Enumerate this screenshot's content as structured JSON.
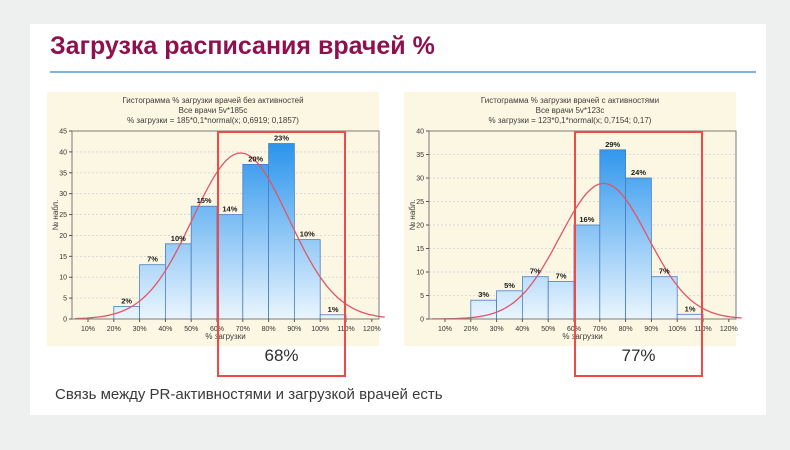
{
  "page": {
    "title": "Загрузка расписания врачей %",
    "footnote": "Связь между PR-активностями и загрузкой врачей есть"
  },
  "colors": {
    "title_text": "#8e104f",
    "title_underline": "#7fb2d9",
    "card_background": "#fcf7e2",
    "bar_gradient_top": "#1d8deb",
    "bar_gradient_bottom": "#eaf5fe",
    "bar_border": "#4a7ec0",
    "normal_curve": "#e25568",
    "highlight_box": "#ef4949",
    "footnote_text": "#3a3a3a"
  },
  "chart_data": [
    {
      "type": "bar",
      "title": "Гистограмма % загрузки врачей без активностей",
      "subtitle": "Все врачи 5v*185c",
      "formula": "% загрузки = 185*0,1*normal(x; 0,6919; 0,1857)",
      "xlabel": "% загрузки",
      "ylabel": "№ набл.",
      "ylim": [
        0,
        45
      ],
      "ytick_step": 5,
      "grid": true,
      "xticks": [
        "10%",
        "20%",
        "30%",
        "40%",
        "50%",
        "60%",
        "70%",
        "80%",
        "90%",
        "100%",
        "110%",
        "120%"
      ],
      "bins_start_pct": 20,
      "bin_width_pct": 10,
      "values": [
        3,
        13,
        18,
        27,
        25,
        37,
        42,
        19,
        1
      ],
      "bar_labels": [
        "2%",
        "7%",
        "10%",
        "15%",
        "14%",
        "20%",
        "23%",
        "10%",
        "1%"
      ],
      "normal_curve": {
        "n": 185,
        "factor": 0.1,
        "mean": 0.6919,
        "sd": 0.1857
      },
      "highlight_range_pct": [
        60,
        110
      ],
      "highlight_label": "68%"
    },
    {
      "type": "bar",
      "title": "Гистограмма % загрузки врачей с активностями",
      "subtitle": "Все врачи 5v*123c",
      "formula": "% загрузки = 123*0,1*normal(x; 0,7154; 0,17)",
      "xlabel": "% загрузки",
      "ylabel": "№ набл.",
      "ylim": [
        0,
        40
      ],
      "ytick_step": 5,
      "grid": true,
      "xticks": [
        "10%",
        "20%",
        "30%",
        "40%",
        "50%",
        "60%",
        "70%",
        "80%",
        "90%",
        "100%",
        "110%",
        "120%"
      ],
      "bins_start_pct": 20,
      "bin_width_pct": 10,
      "values": [
        4,
        6,
        9,
        8,
        20,
        36,
        30,
        9,
        1
      ],
      "bar_labels": [
        "3%",
        "5%",
        "7%",
        "7%",
        "16%",
        "29%",
        "24%",
        "7%",
        "1%"
      ],
      "normal_curve": {
        "n": 123,
        "factor": 0.1,
        "mean": 0.7154,
        "sd": 0.17
      },
      "highlight_range_pct": [
        60,
        110
      ],
      "highlight_label": "77%"
    }
  ]
}
